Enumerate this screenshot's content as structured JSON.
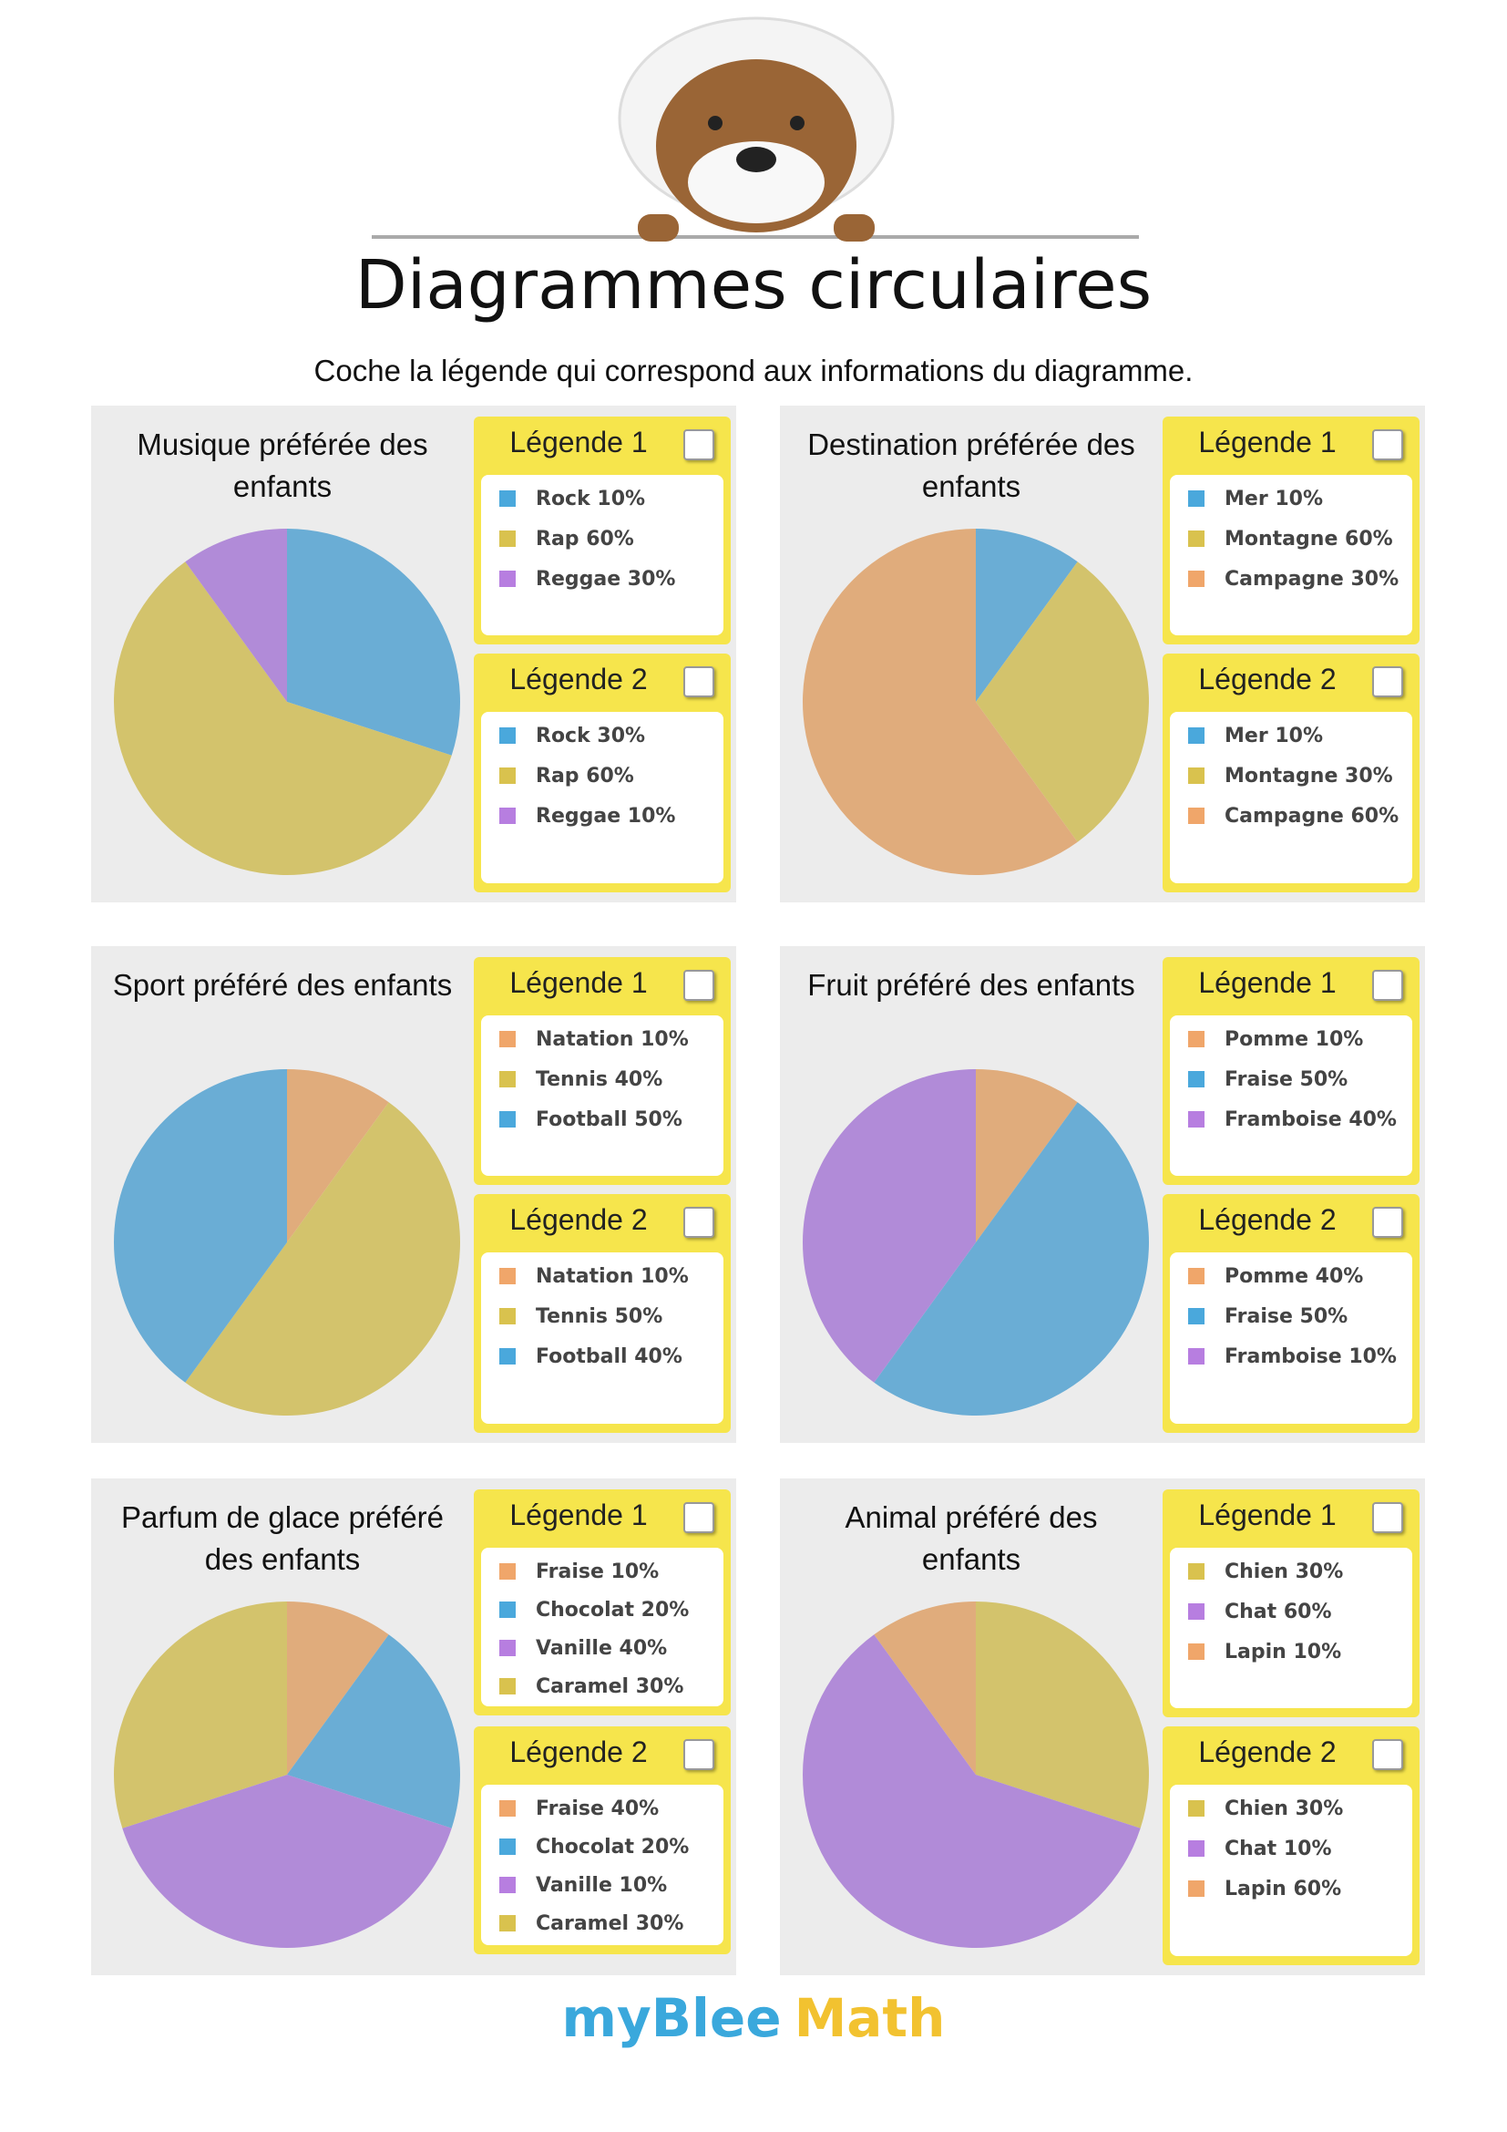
{
  "header": {
    "title": "Diagrammes circulaires",
    "subtitle": "Coche la légende qui correspond aux informations du diagramme."
  },
  "chart_data": [
    {
      "type": "pie",
      "title": "Musique préférée des enfants",
      "categories": [
        "Rock",
        "Rap",
        "Reggae"
      ],
      "values": [
        30,
        60,
        10
      ],
      "colors": [
        "#6aadd5",
        "#d3c36c",
        "#b18bd8"
      ],
      "legends": [
        {
          "title": "Légende 1",
          "items": [
            "Rock 10%",
            "Rap 60%",
            "Reggae 30%"
          ],
          "colors": [
            "#4aa8dc",
            "#d9c24e",
            "#b77ee0"
          ]
        },
        {
          "title": "Légende 2",
          "items": [
            "Rock 30%",
            "Rap 60%",
            "Reggae 10%"
          ],
          "colors": [
            "#4aa8dc",
            "#d9c24e",
            "#b77ee0"
          ]
        }
      ]
    },
    {
      "type": "pie",
      "title": "Destination préférée des enfants",
      "categories": [
        "Mer",
        "Montagne",
        "Campagne"
      ],
      "values": [
        10,
        30,
        60
      ],
      "colors": [
        "#6aadd5",
        "#d3c36c",
        "#e0ac7c"
      ],
      "legends": [
        {
          "title": "Légende 1",
          "items": [
            "Mer 10%",
            "Montagne 60%",
            "Campagne 30%"
          ],
          "colors": [
            "#4aa8dc",
            "#d9c24e",
            "#f0a66a"
          ]
        },
        {
          "title": "Légende 2",
          "items": [
            "Mer 10%",
            "Montagne 30%",
            "Campagne 60%"
          ],
          "colors": [
            "#4aa8dc",
            "#d9c24e",
            "#f0a66a"
          ]
        }
      ]
    },
    {
      "type": "pie",
      "title": "Sport préféré des enfants",
      "categories": [
        "Natation",
        "Tennis",
        "Football"
      ],
      "values": [
        10,
        50,
        40
      ],
      "colors": [
        "#e0ac7c",
        "#d3c36c",
        "#6aadd5"
      ],
      "legends": [
        {
          "title": "Légende 1",
          "items": [
            "Natation 10%",
            "Tennis 40%",
            "Football 50%"
          ],
          "colors": [
            "#f0a66a",
            "#d9c24e",
            "#4aa8dc"
          ]
        },
        {
          "title": "Légende 2",
          "items": [
            "Natation 10%",
            "Tennis 50%",
            "Football 40%"
          ],
          "colors": [
            "#f0a66a",
            "#d9c24e",
            "#4aa8dc"
          ]
        }
      ]
    },
    {
      "type": "pie",
      "title": "Fruit préféré des enfants",
      "categories": [
        "Pomme",
        "Fraise",
        "Framboise"
      ],
      "values": [
        10,
        50,
        40
      ],
      "colors": [
        "#e0ac7c",
        "#6aadd5",
        "#b18bd8"
      ],
      "legends": [
        {
          "title": "Légende 1",
          "items": [
            "Pomme 10%",
            "Fraise 50%",
            "Framboise 40%"
          ],
          "colors": [
            "#f0a66a",
            "#4aa8dc",
            "#b77ee0"
          ]
        },
        {
          "title": "Légende 2",
          "items": [
            "Pomme 40%",
            "Fraise 50%",
            "Framboise 10%"
          ],
          "colors": [
            "#f0a66a",
            "#4aa8dc",
            "#b77ee0"
          ]
        }
      ]
    },
    {
      "type": "pie",
      "title": "Parfum de glace préféré des enfants",
      "categories": [
        "Fraise",
        "Chocolat",
        "Vanille",
        "Caramel"
      ],
      "values": [
        10,
        20,
        40,
        30
      ],
      "colors": [
        "#e0ac7c",
        "#6aadd5",
        "#b18bd8",
        "#d3c36c"
      ],
      "legends": [
        {
          "title": "Légende 1",
          "items": [
            "Fraise 10%",
            "Chocolat 20%",
            "Vanille 40%",
            "Caramel 30%"
          ],
          "colors": [
            "#f0a66a",
            "#4aa8dc",
            "#b77ee0",
            "#d9c24e"
          ]
        },
        {
          "title": "Légende 2",
          "items": [
            "Fraise 40%",
            "Chocolat 20%",
            "Vanille 10%",
            "Caramel 30%"
          ],
          "colors": [
            "#f0a66a",
            "#4aa8dc",
            "#b77ee0",
            "#d9c24e"
          ]
        }
      ]
    },
    {
      "type": "pie",
      "title": "Animal préféré des enfants",
      "categories": [
        "Chien",
        "Chat",
        "Lapin"
      ],
      "values": [
        30,
        60,
        10
      ],
      "colors": [
        "#d3c36c",
        "#b18bd8",
        "#e0ac7c"
      ],
      "legends": [
        {
          "title": "Légende 1",
          "items": [
            "Chien 30%",
            "Chat 60%",
            "Lapin 10%"
          ],
          "colors": [
            "#d9c24e",
            "#b77ee0",
            "#f0a66a"
          ]
        },
        {
          "title": "Légende 2",
          "items": [
            "Chien 30%",
            "Chat 10%",
            "Lapin 60%"
          ],
          "colors": [
            "#d9c24e",
            "#b77ee0",
            "#f0a66a"
          ]
        }
      ]
    }
  ],
  "footer": {
    "brand_1": "myBlee",
    "brand_2": "Math"
  }
}
